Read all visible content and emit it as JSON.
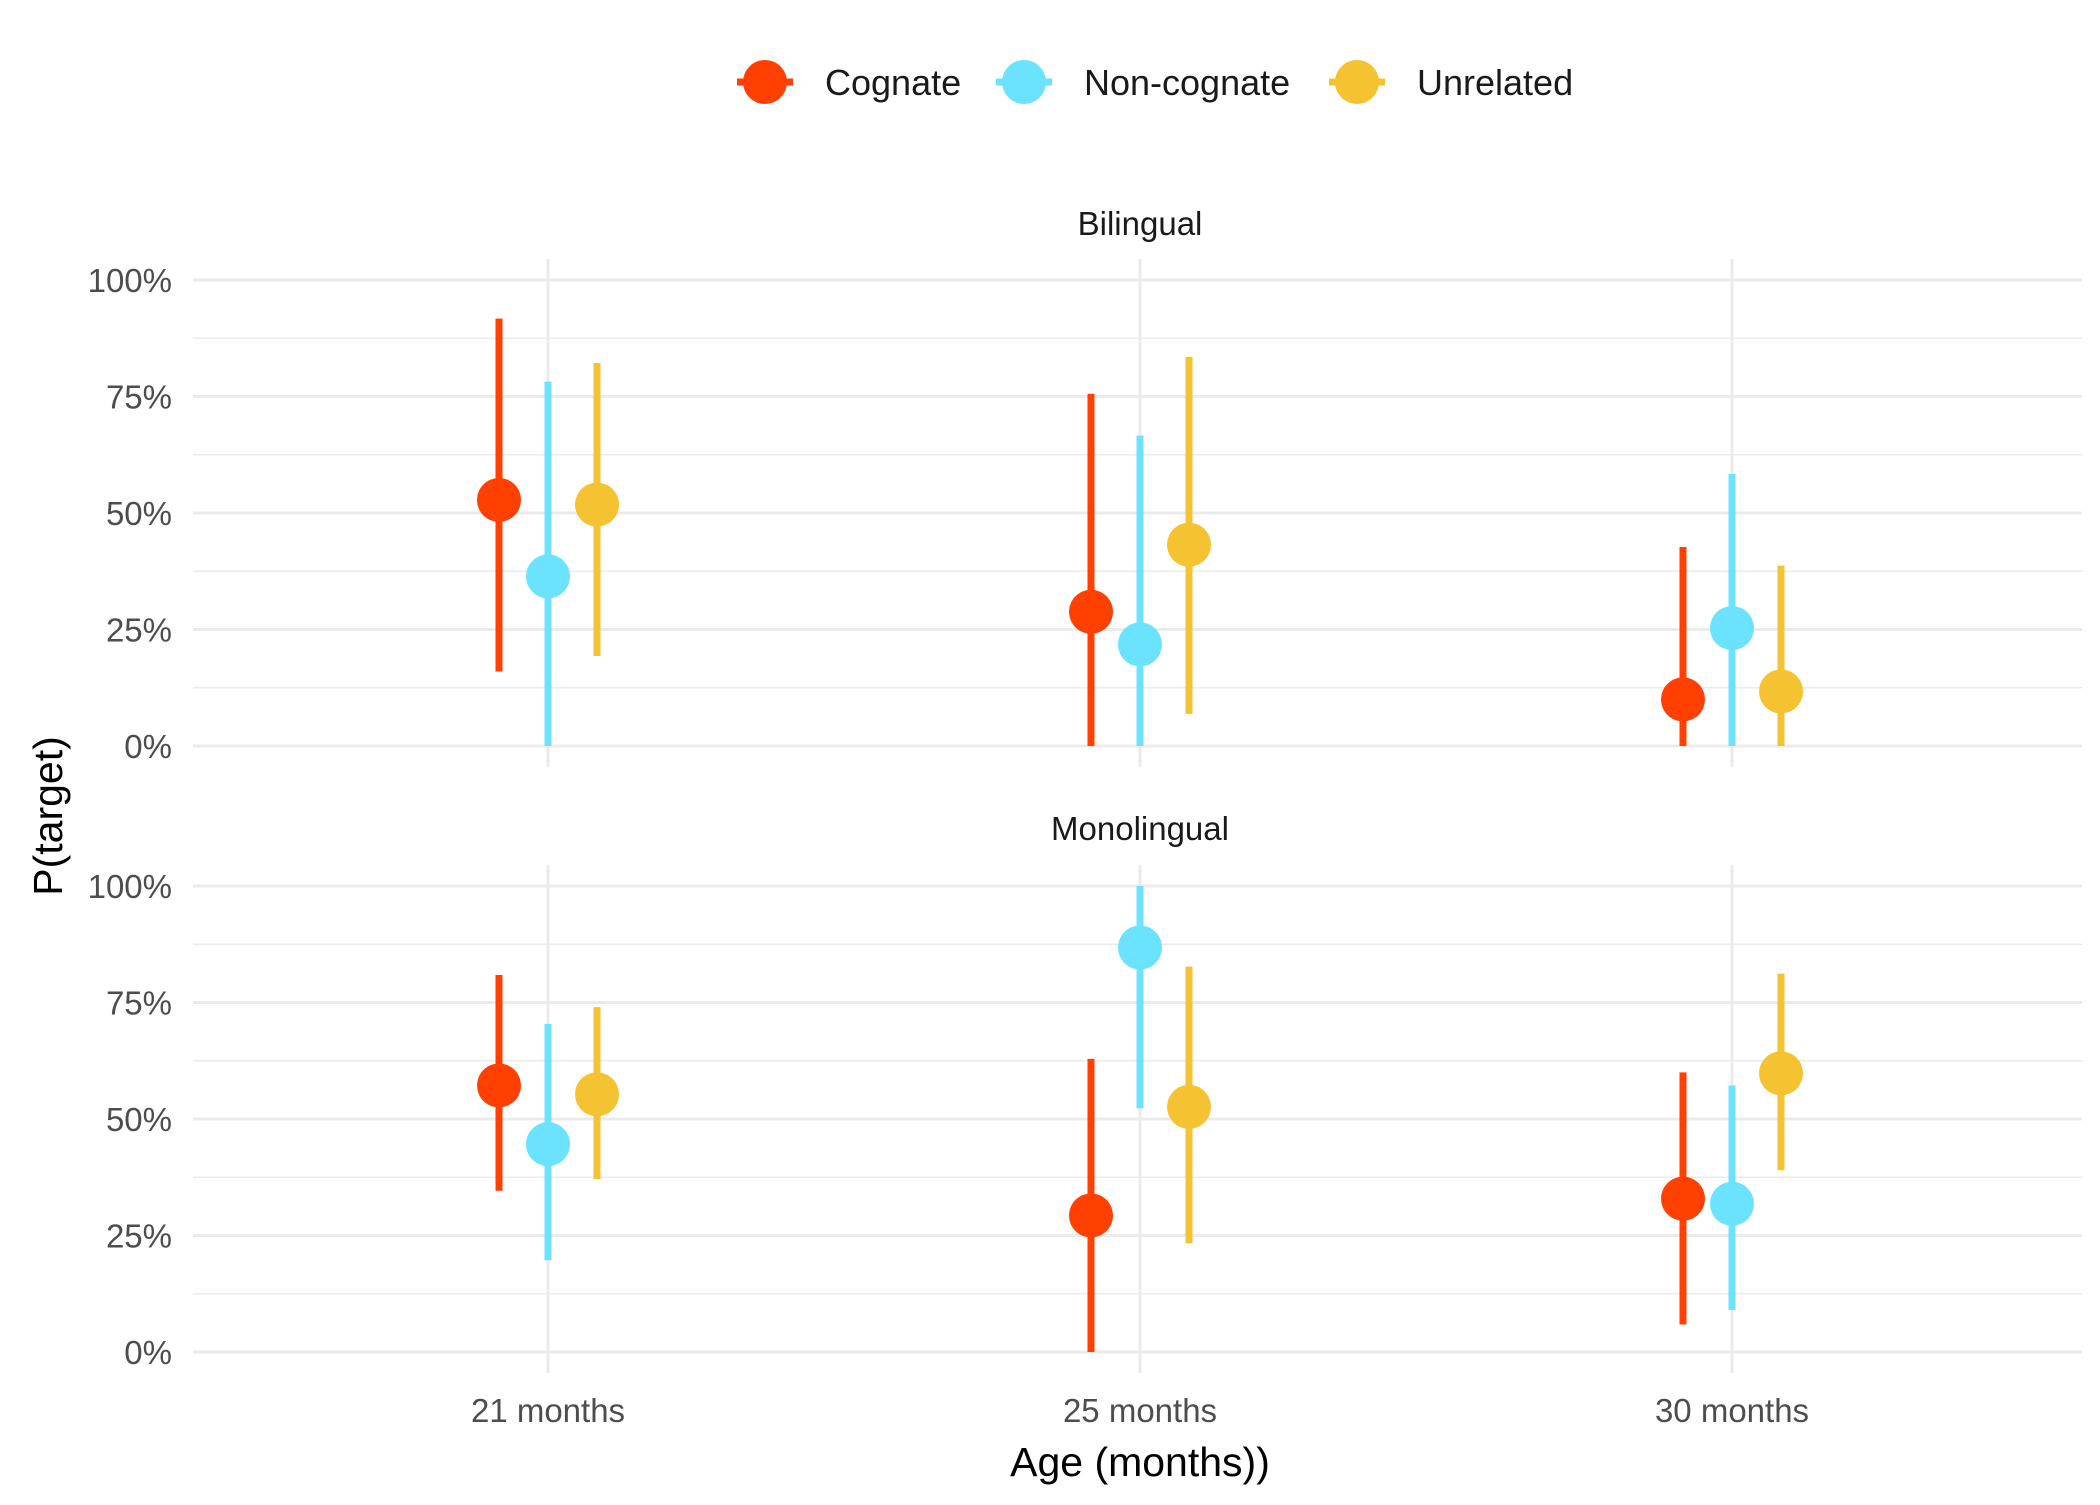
{
  "chart_data": {
    "type": "scatter",
    "subtype": "point-range faceted",
    "xlabel": "Age (months))",
    "ylabel": "P(target)",
    "categories": [
      "21 months",
      "25 months",
      "30 months"
    ],
    "y_ticks": [
      "0%",
      "25%",
      "50%",
      "75%",
      "100%"
    ],
    "ylim": [
      0,
      100
    ],
    "grid": true,
    "legend": {
      "position": "top",
      "entries": [
        {
          "name": "Cognate",
          "color": "#FF4000"
        },
        {
          "name": "Non-cognate",
          "color": "#6BE3FF"
        },
        {
          "name": "Unrelated",
          "color": "#F5C332"
        }
      ]
    },
    "facets": [
      {
        "label": "Bilingual",
        "series": [
          {
            "name": "Cognate",
            "values": [
              52.8,
              28.8,
              10.0
            ],
            "lower": [
              16,
              0,
              0
            ],
            "upper": [
              91.7,
              75.6,
              42.7
            ]
          },
          {
            "name": "Non-cognate",
            "values": [
              36.4,
              21.8,
              25.3
            ],
            "lower": [
              0,
              0,
              0
            ],
            "upper": [
              78.2,
              66.6,
              58.4
            ]
          },
          {
            "name": "Unrelated",
            "values": [
              51.8,
              43.2,
              11.7
            ],
            "lower": [
              19.3,
              6.9,
              0
            ],
            "upper": [
              82.2,
              83.5,
              38.7
            ]
          }
        ]
      },
      {
        "label": "Monolingual",
        "series": [
          {
            "name": "Cognate",
            "values": [
              57.2,
              29.3,
              32.9
            ],
            "lower": [
              34.6,
              0,
              5.9
            ],
            "upper": [
              80.9,
              62.9,
              60.0
            ]
          },
          {
            "name": "Non-cognate",
            "values": [
              44.6,
              86.8,
              31.8
            ],
            "lower": [
              19.7,
              52.3,
              9.0
            ],
            "upper": [
              70.4,
              100,
              57.2
            ]
          },
          {
            "name": "Unrelated",
            "values": [
              55.3,
              52.6,
              59.8
            ],
            "lower": [
              37.1,
              23.3,
              39.0
            ],
            "upper": [
              74.0,
              82.7,
              81.2
            ]
          }
        ]
      }
    ]
  }
}
